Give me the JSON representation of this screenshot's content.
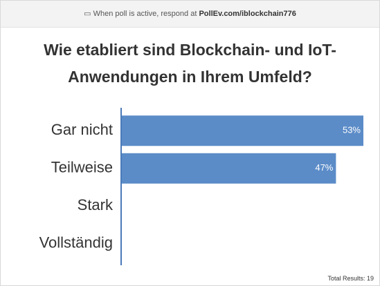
{
  "header": {
    "prefix": "When poll is active, respond at",
    "url": "PollEv.com/iblockchain776"
  },
  "chart_data": {
    "type": "bar",
    "orientation": "horizontal",
    "title": "Wie etabliert sind Blockchain- und IoT-Anwendungen in Ihrem Umfeld?",
    "categories": [
      "Gar nicht",
      "Teilweise",
      "Stark",
      "Vollständig"
    ],
    "values": [
      53,
      47,
      0,
      0
    ],
    "value_labels": [
      "53%",
      "47%",
      null,
      null
    ],
    "color": "#5b8cc8",
    "xlim": [
      0,
      53
    ],
    "total_label": "Total Results:",
    "total": 19
  }
}
